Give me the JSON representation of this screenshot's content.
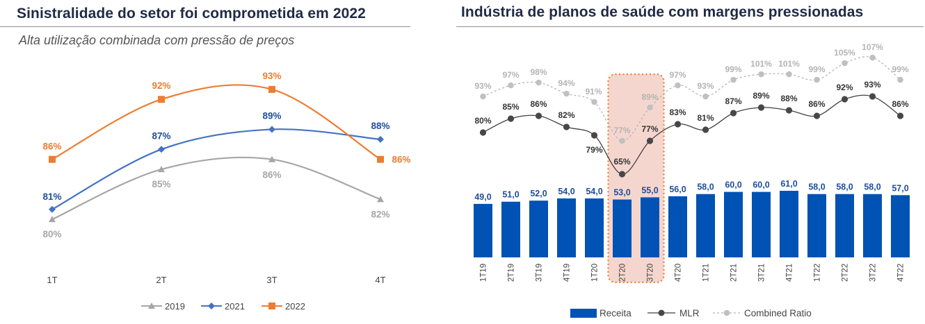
{
  "colors": {
    "title": "#1f2a44",
    "c2019": "#a6a6a6",
    "c2021": "#4472c4",
    "c2022": "#ed7d31",
    "label2021": "#1f4e9c",
    "receita": "#0052b4",
    "mlr": "#404040",
    "combined": "#b4b4b4",
    "highlight_fill": "#f4d2c9",
    "highlight_border": "#ed7d31"
  },
  "left_panel": {
    "title": "Sinistralidade do setor foi comprometida em 2022",
    "subtitle": "Alta utilização combinada com pressão de preços"
  },
  "right_panel": {
    "title": "Indústria de planos de saúde com margens pressionadas"
  },
  "chart_data": [
    {
      "type": "line",
      "title": "Sinistralidade do setor foi comprometida em 2022",
      "subtitle": "Alta utilização combinada com pressão de preços",
      "categories": [
        "1T",
        "2T",
        "3T",
        "4T"
      ],
      "series": [
        {
          "name": "2019",
          "values": [
            80,
            85,
            86,
            82
          ],
          "labels": [
            "80%",
            "85%",
            "86%",
            "82%"
          ],
          "marker": "triangle"
        },
        {
          "name": "2021",
          "values": [
            81,
            87,
            89,
            88
          ],
          "labels": [
            "81%",
            "87%",
            "89%",
            "88%"
          ],
          "marker": "diamond"
        },
        {
          "name": "2022",
          "values": [
            86,
            92,
            93,
            86
          ],
          "labels": [
            "86%",
            "92%",
            "93%",
            "86%"
          ],
          "marker": "square"
        }
      ],
      "ylim": [
        78,
        95
      ],
      "legend": "bottom",
      "grid": false
    },
    {
      "type": "bar",
      "title": "Indústria de planos de saúde com margens pressionadas",
      "categories": [
        "1T19",
        "2T19",
        "3T19",
        "4T19",
        "1T20",
        "2T20",
        "3T20",
        "4T20",
        "1T21",
        "2T21",
        "3T21",
        "4T21",
        "1T22",
        "2T22",
        "3T22",
        "4T22"
      ],
      "series": [
        {
          "name": "Receita",
          "kind": "bar",
          "values": [
            49,
            51,
            52,
            54,
            54,
            53,
            55,
            56,
            58,
            60,
            60,
            61,
            58,
            58,
            58,
            57
          ],
          "labels": [
            "49,0",
            "51,0",
            "52,0",
            "54,0",
            "54,0",
            "53,0",
            "55,0",
            "56,0",
            "58,0",
            "60,0",
            "60,0",
            "61,0",
            "58,0",
            "58,0",
            "58,0",
            "57,0"
          ]
        },
        {
          "name": "MLR",
          "kind": "line",
          "values": [
            80,
            85,
            86,
            82,
            79,
            65,
            77,
            83,
            81,
            87,
            89,
            88,
            86,
            92,
            93,
            86
          ],
          "labels": [
            "80%",
            "85%",
            "86%",
            "82%",
            "79%",
            "65%",
            "77%",
            "83%",
            "81%",
            "87%",
            "89%",
            "88%",
            "86%",
            "92%",
            "93%",
            "86%"
          ]
        },
        {
          "name": "Combined Ratio",
          "kind": "line",
          "style": "dashed",
          "values": [
            93,
            97,
            98,
            94,
            91,
            77,
            89,
            97,
            93,
            99,
            101,
            101,
            99,
            105,
            107,
            99
          ],
          "labels": [
            "93%",
            "97%",
            "98%",
            "94%",
            "91%",
            "77%",
            "89%",
            "97%",
            "93%",
            "99%",
            "101%",
            "101%",
            "99%",
            "105%",
            "107%",
            "99%"
          ]
        }
      ],
      "highlight_categories": [
        "2T20",
        "3T20"
      ],
      "legend": "bottom",
      "grid": false
    }
  ]
}
